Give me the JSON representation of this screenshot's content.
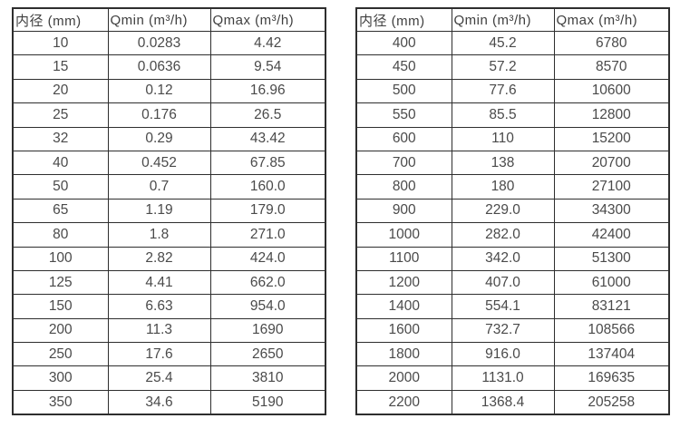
{
  "page": {
    "background_color": "#ffffff",
    "border_color": "#2e2e2e",
    "text_color": "#4a4a4a"
  },
  "tables": [
    {
      "name": "diameter-flow-table-left",
      "headers": [
        "内径 (mm)",
        "Qmin (m³/h)",
        "Qmax (m³/h)"
      ],
      "rows": [
        [
          "10",
          "0.0283",
          "4.42"
        ],
        [
          "15",
          "0.0636",
          "9.54"
        ],
        [
          "20",
          "0.12",
          "16.96"
        ],
        [
          "25",
          "0.176",
          "26.5"
        ],
        [
          "32",
          "0.29",
          "43.42"
        ],
        [
          "40",
          "0.452",
          "67.85"
        ],
        [
          "50",
          "0.7",
          "160.0"
        ],
        [
          "65",
          "1.19",
          "179.0"
        ],
        [
          "80",
          "1.8",
          "271.0"
        ],
        [
          "100",
          "2.82",
          "424.0"
        ],
        [
          "125",
          "4.41",
          "662.0"
        ],
        [
          "150",
          "6.63",
          "954.0"
        ],
        [
          "200",
          "11.3",
          "1690"
        ],
        [
          "250",
          "17.6",
          "2650"
        ],
        [
          "300",
          "25.4",
          "3810"
        ],
        [
          "350",
          "34.6",
          "5190"
        ]
      ]
    },
    {
      "name": "diameter-flow-table-right",
      "headers": [
        "内径 (mm)",
        "Qmin (m³/h)",
        "Qmax (m³/h)"
      ],
      "rows": [
        [
          "400",
          "45.2",
          "6780"
        ],
        [
          "450",
          "57.2",
          "8570"
        ],
        [
          "500",
          "77.6",
          "10600"
        ],
        [
          "550",
          "85.5",
          "12800"
        ],
        [
          "600",
          "110",
          "15200"
        ],
        [
          "700",
          "138",
          "20700"
        ],
        [
          "800",
          "180",
          "27100"
        ],
        [
          "900",
          "229.0",
          "34300"
        ],
        [
          "1000",
          "282.0",
          "42400"
        ],
        [
          "1100",
          "342.0",
          "51300"
        ],
        [
          "1200",
          "407.0",
          "61000"
        ],
        [
          "1400",
          "554.1",
          "83121"
        ],
        [
          "1600",
          "732.7",
          "108566"
        ],
        [
          "1800",
          "916.0",
          "137404"
        ],
        [
          "2000",
          "1131.0",
          "169635"
        ],
        [
          "2200",
          "1368.4",
          "205258"
        ]
      ]
    }
  ]
}
